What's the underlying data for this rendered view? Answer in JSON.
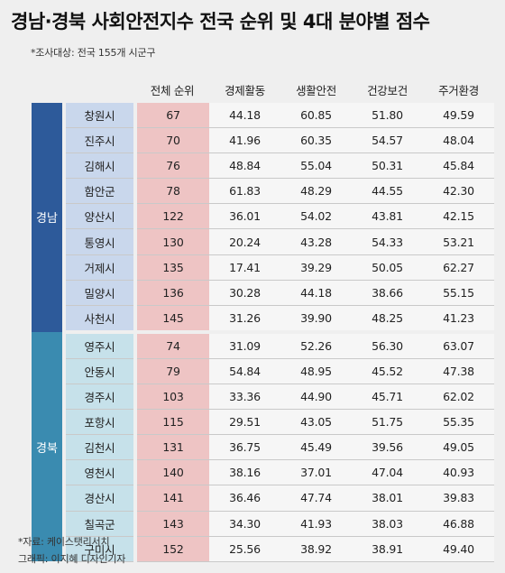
{
  "title": "경남·경북 사회안전지수 전국 순위 및 4대 분야별 점수",
  "subtitle": "*조사대상: 전국 155개 시군구",
  "footer": {
    "source": "*자료: 케이스탯리서치",
    "credit": "그래픽: 이지혜 디자인기자"
  },
  "colors": {
    "gyeongnam": "#2d5a9a",
    "gyeongbuk": "#3a8bb0",
    "rank_column": "#eec4c4"
  },
  "chart_data": {
    "type": "table",
    "columns": [
      "전체 순위",
      "경제활동",
      "생활안전",
      "건강보건",
      "주거환경"
    ],
    "groups": [
      {
        "region": "경남",
        "rows": [
          {
            "city": "창원시",
            "rank": "67",
            "values": [
              "44.18",
              "60.85",
              "51.80",
              "49.59"
            ]
          },
          {
            "city": "진주시",
            "rank": "70",
            "values": [
              "41.96",
              "60.35",
              "54.57",
              "48.04"
            ]
          },
          {
            "city": "김해시",
            "rank": "76",
            "values": [
              "48.84",
              "55.04",
              "50.31",
              "45.84"
            ]
          },
          {
            "city": "함안군",
            "rank": "78",
            "values": [
              "61.83",
              "48.29",
              "44.55",
              "42.30"
            ]
          },
          {
            "city": "양산시",
            "rank": "122",
            "values": [
              "36.01",
              "54.02",
              "43.81",
              "42.15"
            ]
          },
          {
            "city": "통영시",
            "rank": "130",
            "values": [
              "20.24",
              "43.28",
              "54.33",
              "53.21"
            ]
          },
          {
            "city": "거제시",
            "rank": "135",
            "values": [
              "17.41",
              "39.29",
              "50.05",
              "62.27"
            ]
          },
          {
            "city": "밀양시",
            "rank": "136",
            "values": [
              "30.28",
              "44.18",
              "38.66",
              "55.15"
            ]
          },
          {
            "city": "사천시",
            "rank": "145",
            "values": [
              "31.26",
              "39.90",
              "48.25",
              "41.23"
            ]
          }
        ]
      },
      {
        "region": "경북",
        "rows": [
          {
            "city": "영주시",
            "rank": "74",
            "values": [
              "31.09",
              "52.26",
              "56.30",
              "63.07"
            ]
          },
          {
            "city": "안동시",
            "rank": "79",
            "values": [
              "54.84",
              "48.95",
              "45.52",
              "47.38"
            ]
          },
          {
            "city": "경주시",
            "rank": "103",
            "values": [
              "33.36",
              "44.90",
              "45.71",
              "62.02"
            ]
          },
          {
            "city": "포항시",
            "rank": "115",
            "values": [
              "29.51",
              "43.05",
              "51.75",
              "55.35"
            ]
          },
          {
            "city": "김천시",
            "rank": "131",
            "values": [
              "36.75",
              "45.49",
              "39.56",
              "49.05"
            ]
          },
          {
            "city": "영천시",
            "rank": "140",
            "values": [
              "38.16",
              "37.01",
              "47.04",
              "40.93"
            ]
          },
          {
            "city": "경산시",
            "rank": "141",
            "values": [
              "36.46",
              "47.74",
              "38.01",
              "39.83"
            ]
          },
          {
            "city": "칠곡군",
            "rank": "143",
            "values": [
              "34.30",
              "41.93",
              "38.03",
              "46.88"
            ]
          },
          {
            "city": "구미시",
            "rank": "152",
            "values": [
              "25.56",
              "38.92",
              "38.91",
              "49.40"
            ]
          }
        ]
      }
    ]
  }
}
